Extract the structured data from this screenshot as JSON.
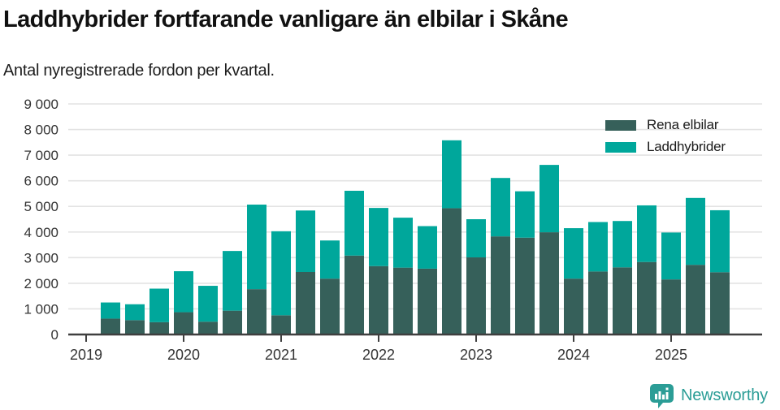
{
  "header": {
    "title": "Laddhybrider fortfarande vanligare än elbilar i Skåne",
    "subtitle": "Antal nyregistrerade fordon per kvartal."
  },
  "legend": {
    "items": [
      {
        "label": "Rena elbilar",
        "color": "#36605a"
      },
      {
        "label": "Laddhybrider",
        "color": "#00a79b"
      }
    ]
  },
  "footer": {
    "brand": "Newsworthy",
    "brand_color": "#2b9d96",
    "logo_icon": "bar-chart-speech-bubble-icon"
  },
  "chart_data": {
    "type": "bar",
    "stacked": true,
    "title": "Laddhybrider fortfarande vanligare än elbilar i Skåne",
    "subtitle": "Antal nyregistrerade fordon per kvartal.",
    "xlabel": "",
    "ylabel": "",
    "ylim": [
      0,
      9000
    ],
    "grid": true,
    "legend_position": "top-right",
    "x_tick_labels": [
      "2019",
      "2020",
      "2021",
      "2022",
      "2023",
      "2024",
      "2025"
    ],
    "y_ticks": [
      0,
      1000,
      2000,
      3000,
      4000,
      5000,
      6000,
      7000,
      8000,
      9000
    ],
    "y_tick_labels": [
      "0",
      "1 000",
      "2 000",
      "3 000",
      "4 000",
      "5 000",
      "6 000",
      "7 000",
      "8 000",
      "9 000"
    ],
    "categories": [
      "2019 Q2",
      "2019 Q3",
      "2019 Q4",
      "2020 Q1",
      "2020 Q2",
      "2020 Q3",
      "2020 Q4",
      "2021 Q1",
      "2021 Q2",
      "2021 Q3",
      "2021 Q4",
      "2022 Q1",
      "2022 Q2",
      "2022 Q3",
      "2022 Q4",
      "2023 Q1",
      "2023 Q2",
      "2023 Q3",
      "2023 Q4",
      "2024 Q1",
      "2024 Q2",
      "2024 Q3",
      "2024 Q4",
      "2025 Q1",
      "2025 Q2",
      "2025 Q3"
    ],
    "series": [
      {
        "name": "Rena elbilar",
        "color": "#36605a",
        "values": [
          620,
          560,
          480,
          870,
          500,
          930,
          1770,
          750,
          2440,
          2180,
          3080,
          2670,
          2610,
          2570,
          4930,
          3010,
          3830,
          3780,
          3990,
          2180,
          2460,
          2620,
          2830,
          2150,
          2720,
          2430
        ]
      },
      {
        "name": "Laddhybrider",
        "color": "#00a79b",
        "values": [
          630,
          620,
          1310,
          1600,
          1400,
          2330,
          3300,
          3280,
          2400,
          1490,
          2530,
          2270,
          1950,
          1660,
          2650,
          1490,
          2280,
          1810,
          2630,
          1970,
          1930,
          1810,
          2210,
          1830,
          2610,
          2420
        ]
      }
    ],
    "colors": {
      "grid": "#e3e3e3",
      "axis": "#3f3f3f",
      "tick_label": "#333333"
    }
  }
}
